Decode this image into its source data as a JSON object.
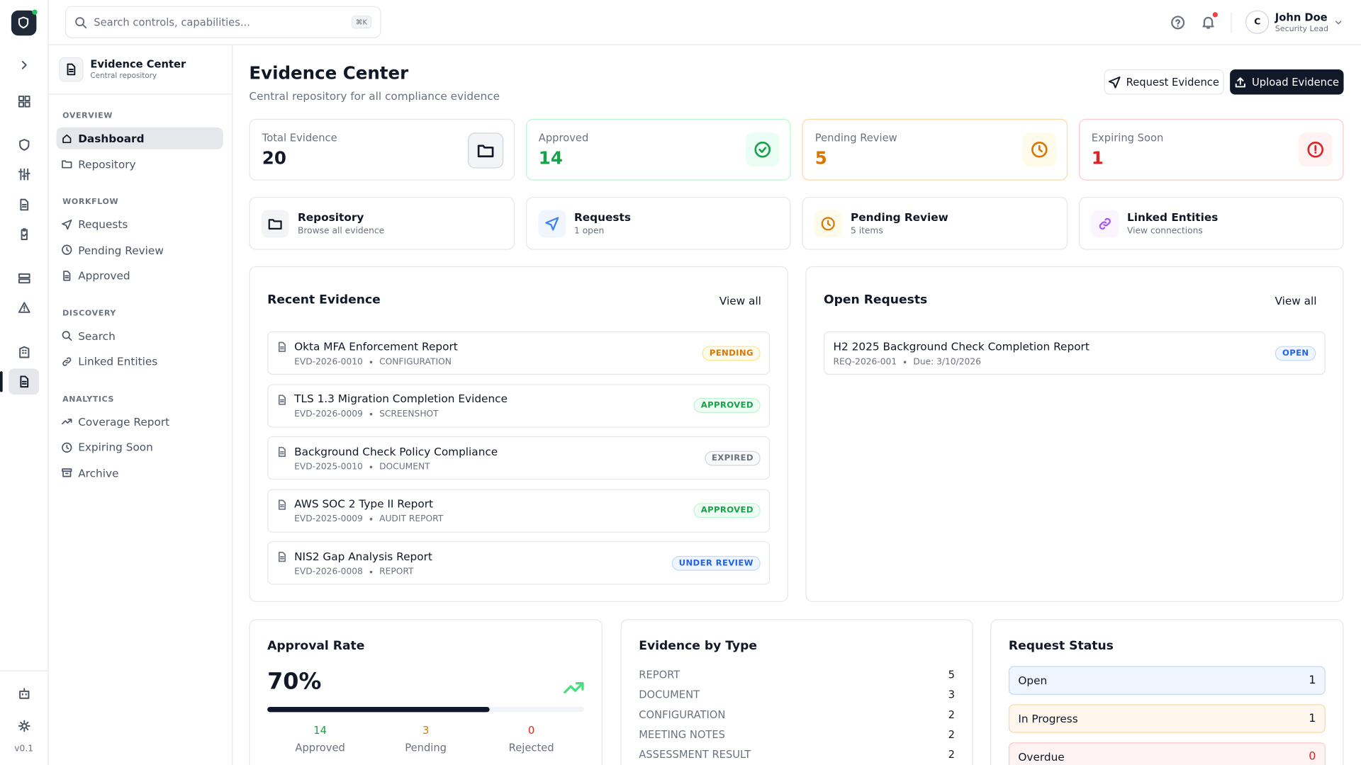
{
  "topbar": {
    "search_placeholder": "Search controls, capabilities...",
    "shortcut": "⌘K",
    "user": {
      "initial": "C",
      "name": "John Doe",
      "role": "Security Lead"
    }
  },
  "rail": {
    "version": "v0.1"
  },
  "sidebar": {
    "title": "Evidence Center",
    "subtitle": "Central repository",
    "sections": [
      {
        "heading": "OVERVIEW",
        "items": [
          "Dashboard",
          "Repository"
        ]
      },
      {
        "heading": "WORKFLOW",
        "items": [
          "Requests",
          "Pending Review",
          "Approved"
        ]
      },
      {
        "heading": "DISCOVERY",
        "items": [
          "Search",
          "Linked Entities"
        ]
      },
      {
        "heading": "ANALYTICS",
        "items": [
          "Coverage Report",
          "Expiring Soon",
          "Archive"
        ]
      }
    ]
  },
  "header": {
    "title": "Evidence Center",
    "subtitle": "Central repository for all compliance evidence",
    "actions": [
      "Request Evidence",
      "Upload Evidence"
    ]
  },
  "stats": [
    {
      "label": "Total Evidence",
      "value": 20
    },
    {
      "label": "Approved",
      "value": 14
    },
    {
      "label": "Pending Review",
      "value": 5
    },
    {
      "label": "Expiring Soon",
      "value": 1
    }
  ],
  "shortcuts": [
    {
      "title": "Repository",
      "subtitle": "Browse all evidence"
    },
    {
      "title": "Requests",
      "subtitle": "1 open"
    },
    {
      "title": "Pending Review",
      "subtitle": "5 items"
    },
    {
      "title": "Linked Entities",
      "subtitle": "View connections"
    }
  ],
  "recent_evidence": {
    "title": "Recent Evidence",
    "view_all": "View all",
    "items": [
      {
        "title": "Okta MFA Enforcement Report",
        "id": "EVD-2026-0010",
        "type": "CONFIGURATION",
        "status": "PENDING"
      },
      {
        "title": "TLS 1.3 Migration Completion Evidence",
        "id": "EVD-2026-0009",
        "type": "SCREENSHOT",
        "status": "APPROVED"
      },
      {
        "title": "Background Check Policy Compliance",
        "id": "EVD-2025-0010",
        "type": "DOCUMENT",
        "status": "EXPIRED"
      },
      {
        "title": "AWS SOC 2 Type II Report",
        "id": "EVD-2025-0009",
        "type": "AUDIT REPORT",
        "status": "APPROVED"
      },
      {
        "title": "NIS2 Gap Analysis Report",
        "id": "EVD-2026-0008",
        "type": "REPORT",
        "status": "UNDER REVIEW"
      }
    ]
  },
  "open_requests": {
    "title": "Open Requests",
    "view_all": "View all",
    "items": [
      {
        "title": "H2 2025 Background Check Completion Report",
        "id": "REQ-2026-001",
        "due": "Due: 3/10/2026",
        "status": "OPEN"
      }
    ]
  },
  "approval_rate": {
    "title": "Approval Rate",
    "rate": {
      "value": 70,
      "label": "70%"
    },
    "breakdown": [
      {
        "value": 14,
        "label": "Approved"
      },
      {
        "value": 3,
        "label": "Pending"
      },
      {
        "value": 0,
        "label": "Rejected"
      }
    ]
  },
  "evidence_by_type": {
    "title": "Evidence by Type",
    "rows": [
      {
        "label": "REPORT",
        "count": 5
      },
      {
        "label": "DOCUMENT",
        "count": 3
      },
      {
        "label": "CONFIGURATION",
        "count": 2
      },
      {
        "label": "MEETING NOTES",
        "count": 2
      },
      {
        "label": "ASSESSMENT RESULT",
        "count": 2
      }
    ]
  },
  "request_status": {
    "title": "Request Status",
    "rows": [
      {
        "label": "Open",
        "count": 1
      },
      {
        "label": "In Progress",
        "count": 1
      },
      {
        "label": "Overdue",
        "count": 0
      }
    ]
  }
}
